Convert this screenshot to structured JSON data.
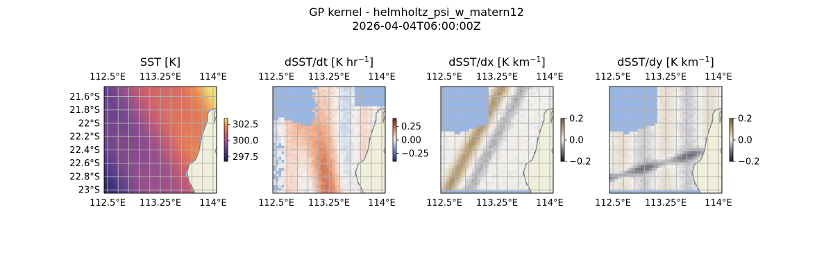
{
  "figure": {
    "title_line1": "GP kernel - helmholtz_psi_w_matern12",
    "title_line2": "2026-04-04T06:00:00Z"
  },
  "map": {
    "lon_range": [
      112.45,
      114.05
    ],
    "lat_range": [
      -23.05,
      -21.45
    ],
    "lon_ticks": [
      112.5,
      113.25,
      114.0
    ],
    "lon_tick_labels": [
      "112.5°E",
      "113.25°E",
      "114°E"
    ],
    "lat_ticks": [
      -21.6,
      -21.8,
      -22.0,
      -22.2,
      -22.4,
      -22.6,
      -22.8,
      -23.0
    ],
    "lat_tick_labels": [
      "21.6°S",
      "21.8°S",
      "22°S",
      "22.2°S",
      "22.4°S",
      "22.6°S",
      "22.8°S",
      "23°S"
    ],
    "grid_lon_step": 0.15,
    "grid_lat_step": 0.2,
    "gridlines": true,
    "land_color": "#efefdb",
    "coast_color": "#7a7a7a",
    "missing_color": "#9ab6e3",
    "coastline": [
      [
        114.05,
        -21.45
      ],
      [
        114.05,
        -21.78
      ],
      [
        113.97,
        -21.79
      ],
      [
        113.92,
        -21.86
      ],
      [
        113.92,
        -21.96
      ],
      [
        113.87,
        -22.1
      ],
      [
        113.83,
        -22.25
      ],
      [
        113.8,
        -22.42
      ],
      [
        113.75,
        -22.55
      ],
      [
        113.66,
        -22.62
      ],
      [
        113.63,
        -22.74
      ],
      [
        113.66,
        -22.88
      ],
      [
        113.72,
        -22.99
      ],
      [
        113.74,
        -23.05
      ],
      [
        114.05,
        -23.05
      ]
    ],
    "islands": [
      [
        [
          114.04,
          -21.82
        ],
        [
          114.05,
          -21.87
        ],
        [
          114.02,
          -21.99
        ],
        [
          114.02,
          -21.84
        ]
      ],
      [
        [
          114.05,
          -22.36
        ],
        [
          114.05,
          -22.46
        ],
        [
          114.03,
          -22.42
        ]
      ]
    ],
    "colorbar_ticks_label": "colorbar ticks"
  },
  "chart_data": [
    {
      "type": "heatmap",
      "title_main": "SST [K]",
      "title_sup": "",
      "title_tail": "",
      "field": "sst",
      "colormap": "thermal",
      "value_range": [
        296.8,
        303.4
      ],
      "colorbar_ticks": [
        302.5,
        300.0,
        297.5
      ],
      "colorbar_tick_labels": [
        "302.5",
        "300.0",
        "297.5"
      ],
      "show_lat_labels": true,
      "show_top_lon_labels": true,
      "show_bottom_lon_labels": true
    },
    {
      "type": "heatmap",
      "title_main": "dSST/dt [K hr",
      "title_sup": "−1",
      "title_tail": "]",
      "field": "dsst_dt",
      "colormap": "diverging_red_blue",
      "value_range": [
        -0.4,
        0.4
      ],
      "colorbar_ticks": [
        0.25,
        0.0,
        -0.25
      ],
      "colorbar_tick_labels": [
        "0.25",
        "0.00",
        "−0.25"
      ],
      "show_lat_labels": false,
      "show_top_lon_labels": true,
      "show_bottom_lon_labels": true
    },
    {
      "type": "heatmap",
      "title_main": "dSST/dx [K km",
      "title_sup": "−1",
      "title_tail": "]",
      "field": "dsst_dx",
      "colormap": "diverging_brown_gray",
      "value_range": [
        -0.2,
        0.2
      ],
      "colorbar_ticks": [
        0.2,
        0.0,
        -0.2
      ],
      "colorbar_tick_labels": [
        "0.2",
        "0.0",
        "−0.2"
      ],
      "show_lat_labels": false,
      "show_top_lon_labels": true,
      "show_bottom_lon_labels": true
    },
    {
      "type": "heatmap",
      "title_main": "dSST/dy [K km",
      "title_sup": "−1",
      "title_tail": "]",
      "field": "dsst_dy",
      "colormap": "diverging_brown_gray",
      "value_range": [
        -0.2,
        0.2
      ],
      "colorbar_ticks": [
        0.2,
        0.0,
        -0.2
      ],
      "colorbar_tick_labels": [
        "0.2",
        "0.0",
        "−0.2"
      ],
      "show_lat_labels": false,
      "show_top_lon_labels": true,
      "show_bottom_lon_labels": true
    }
  ]
}
